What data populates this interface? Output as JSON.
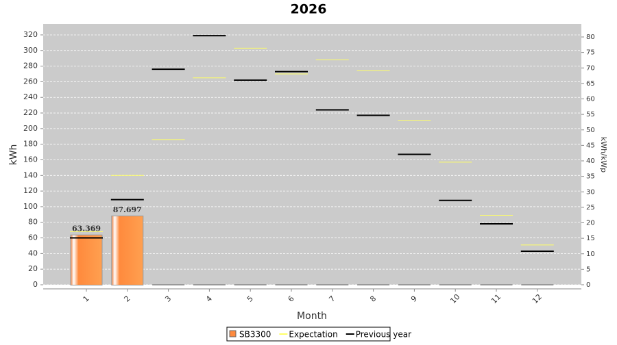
{
  "chart_data": {
    "type": "bar",
    "title": "2026",
    "x_label": "Month",
    "y_label": "kWh",
    "y2_label": "kWh/kWp",
    "categories": [
      "1",
      "2",
      "3",
      "4",
      "5",
      "6",
      "7",
      "8",
      "9",
      "10",
      "11",
      "12"
    ],
    "series": [
      {
        "name": "SB3300",
        "type": "bar",
        "color": "#ff8a3d",
        "values": [
          63.369,
          87.697,
          0,
          0,
          0,
          0,
          0,
          0,
          0,
          0,
          0,
          0
        ]
      },
      {
        "name": "Expectation",
        "type": "step",
        "color": "#ffff66",
        "values": [
          68,
          140,
          186,
          265,
          303,
          270,
          288,
          274,
          210,
          157,
          89,
          51
        ]
      },
      {
        "name": "Previous year",
        "type": "step",
        "color": "#000000",
        "values": [
          60,
          109,
          276,
          319,
          262,
          273,
          224,
          217,
          167,
          108,
          78,
          43
        ]
      }
    ],
    "ylim": [
      0,
      334
    ],
    "yticks": [
      0,
      20,
      40,
      60,
      80,
      100,
      120,
      140,
      160,
      180,
      200,
      220,
      240,
      260,
      280,
      300,
      320
    ],
    "y2lim": [
      0,
      84.2
    ],
    "y2ticks": [
      0,
      5,
      10,
      15,
      20,
      25,
      30,
      35,
      40,
      45,
      50,
      55,
      60,
      65,
      70,
      75,
      80
    ],
    "grid": true,
    "legend": "bottom"
  }
}
